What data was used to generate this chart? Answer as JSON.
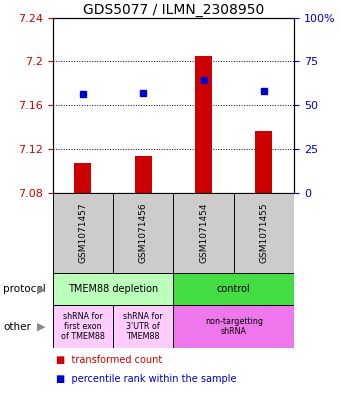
{
  "title": "GDS5077 / ILMN_2308950",
  "samples": [
    "GSM1071457",
    "GSM1071456",
    "GSM1071454",
    "GSM1071455"
  ],
  "bar_bottoms": [
    7.08,
    7.08,
    7.08,
    7.08
  ],
  "bar_tops": [
    7.107,
    7.113,
    7.205,
    7.136
  ],
  "percentile_values": [
    7.17,
    7.171,
    7.183,
    7.173
  ],
  "ylim": [
    7.08,
    7.24
  ],
  "yticks_left": [
    7.08,
    7.12,
    7.16,
    7.2,
    7.24
  ],
  "ytick_left_labels": [
    "7.08",
    "7.12",
    "7.16",
    "7.2",
    "7.24"
  ],
  "yticks_right_pct": [
    0,
    25,
    50,
    75,
    100
  ],
  "ytick_right_labels": [
    "0",
    "25",
    "50",
    "75",
    "100%"
  ],
  "bar_color": "#cc0000",
  "dot_color": "#0000cc",
  "protocol_row": [
    {
      "label": "TMEM88 depletion",
      "cols": [
        0,
        1
      ],
      "color": "#bbffbb"
    },
    {
      "label": "control",
      "cols": [
        2,
        3
      ],
      "color": "#44dd44"
    }
  ],
  "other_row": [
    {
      "label": "shRNA for\nfirst exon\nof TMEM88",
      "cols": [
        0
      ],
      "color": "#ffccff"
    },
    {
      "label": "shRNA for\n3'UTR of\nTMEM88",
      "cols": [
        1
      ],
      "color": "#ffccff"
    },
    {
      "label": "non-targetting\nshRNA",
      "cols": [
        2,
        3
      ],
      "color": "#ee77ee"
    }
  ],
  "left_label_color": "#cc0000",
  "right_label_color": "#0000cc",
  "sample_bg_color": "#cccccc",
  "row_label_color": "#000000",
  "arrow_color": "#888888"
}
